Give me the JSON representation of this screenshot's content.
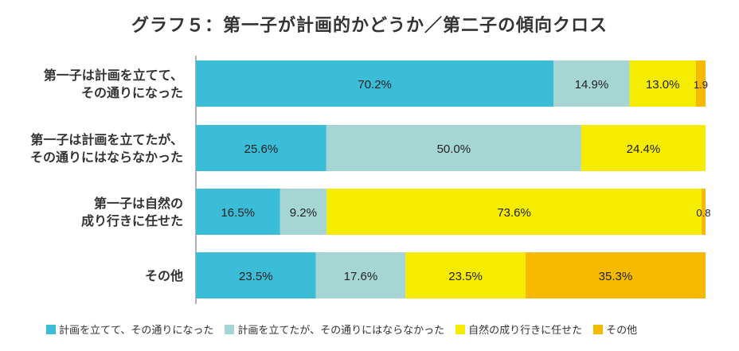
{
  "chart_data": {
    "type": "bar",
    "orientation": "horizontal",
    "stacked": true,
    "normalized": true,
    "title": "グラフ５：第一子が計画的かどうか／第二子の傾向クロス",
    "categories": [
      [
        "第一子は計画を立てて、",
        "その通りになった"
      ],
      [
        "第一子は計画を立てたが、",
        "その通りにはならなかった"
      ],
      [
        "第一子は自然の",
        "成り行きに任せた"
      ],
      [
        "その他"
      ]
    ],
    "series": [
      {
        "name": "計画を立てて、その通りになった",
        "color": "#3bbcd7",
        "values": [
          70.2,
          25.6,
          16.5,
          23.5
        ]
      },
      {
        "name": "計画を立てたが、その通りにはならなかった",
        "color": "#a5d6d4",
        "values": [
          14.9,
          50.0,
          9.2,
          17.6
        ]
      },
      {
        "name": "自然の成り行きに任せた",
        "color": "#f6ec00",
        "values": [
          13.0,
          24.4,
          73.6,
          23.5
        ]
      },
      {
        "name": "その他",
        "color": "#f6bb00",
        "values": [
          1.9,
          0,
          0.8,
          35.3
        ]
      }
    ],
    "data_labels": [
      [
        "70.2%",
        "14.9%",
        "13.0%",
        "1.9"
      ],
      [
        "25.6%",
        "50.0%",
        "24.4%",
        ""
      ],
      [
        "16.5%",
        "9.2%",
        "73.6%",
        "0.8"
      ],
      [
        "23.5%",
        "17.6%",
        "23.5%",
        "35.3%"
      ]
    ],
    "legend_position": "bottom",
    "grid": false
  }
}
